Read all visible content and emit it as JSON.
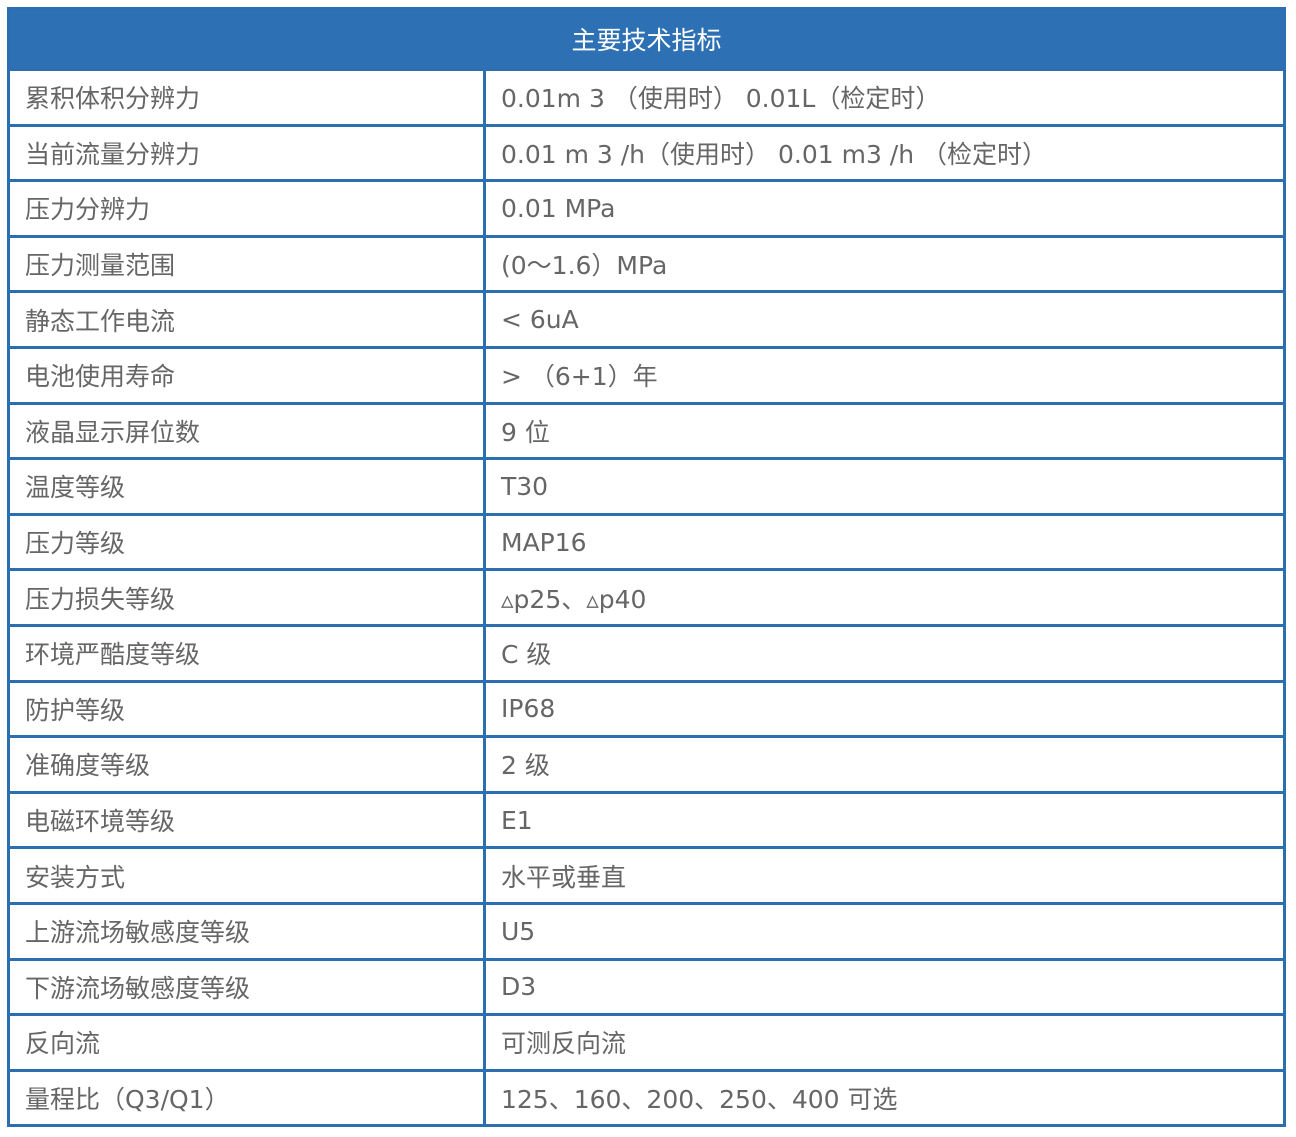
{
  "title": "主要技术指标",
  "rows": [
    {
      "label": "累积体积分辨力",
      "value": "0.01m 3 （使用时） 0.01L（检定时）"
    },
    {
      "label": "当前流量分辨力",
      "value": "0.01 m 3 /h（使用时） 0.01 m3 /h （检定时）"
    },
    {
      "label": "压力分辨力",
      "value": "0.01 MPa"
    },
    {
      "label": "压力测量范围",
      "value": "(0～1.6）MPa"
    },
    {
      "label": "静态工作电流",
      "value": "< 6uA"
    },
    {
      "label": "电池使用寿命",
      "value": "> （6+1）年"
    },
    {
      "label": "液晶显示屏位数",
      "value": "9 位"
    },
    {
      "label": "温度等级",
      "value": "T30"
    },
    {
      "label": "压力等级",
      "value": "MAP16"
    },
    {
      "label": "压力损失等级",
      "value": "▵p25、▵p40"
    },
    {
      "label": "环境严酷度等级",
      "value": "C 级"
    },
    {
      "label": "防护等级",
      "value": "IP68"
    },
    {
      "label": "准确度等级",
      "value": "2 级"
    },
    {
      "label": "电磁环境等级",
      "value": "E1"
    },
    {
      "label": "安装方式",
      "value": "水平或垂直"
    },
    {
      "label": "上游流场敏感度等级",
      "value": "U5"
    },
    {
      "label": "下游流场敏感度等级",
      "value": "D3"
    },
    {
      "label": "反向流",
      "value": "可测反向流"
    },
    {
      "label": "量程比（Q3/Q1）",
      "value": "125、160、200、250、400 可选"
    }
  ],
  "colors": {
    "header_bg": "#2d70b3",
    "border": "#2b6fb1",
    "text": "#666666"
  }
}
